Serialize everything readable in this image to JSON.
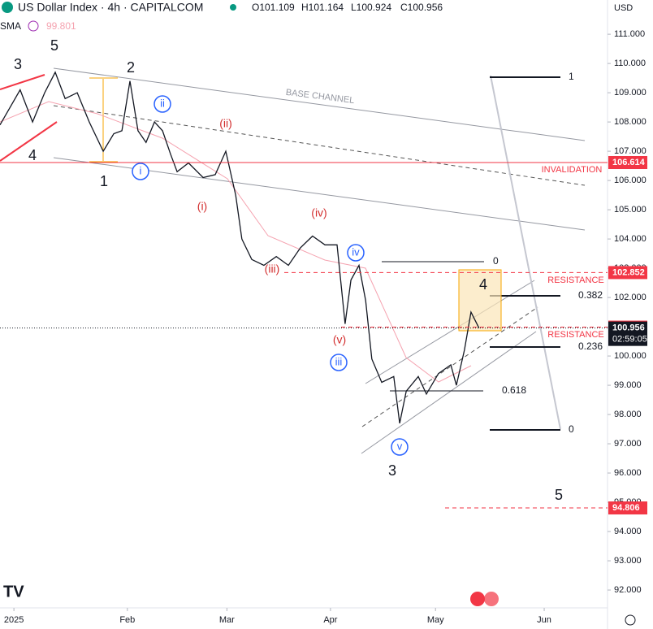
{
  "header": {
    "symbol": "US Dollar Index · 4h · CAPITALCOM",
    "ohlc": [
      "O101.109",
      "H101.164",
      "L100.924",
      "C100.956"
    ],
    "indicator": "SMA",
    "indicator_value": "99.801",
    "currency": "USD"
  },
  "chart_data": {
    "type": "line",
    "color": "#131722",
    "x": [
      0,
      5.5,
      8.9,
      12.2,
      15.1,
      17.8,
      21.1,
      24.4,
      28.2,
      31.1,
      33.3,
      35.5,
      37.7,
      39.9,
      42.2,
      44.4,
      46.6,
      48.4,
      51.5,
      55.5,
      58.8,
      61.7,
      64.4,
      66.1,
      68.8,
      72.1,
      75.5,
      78.8,
      82.1,
      85.4,
      88.8,
      92.1,
      94.3,
      95.9,
      98.1,
      99.9,
      101.6,
      104.3,
      107.6,
      109.2,
      111,
      114.3,
      116.5,
      119.8,
      123.2,
      124.7,
      126.9,
      128.7,
      130.9
    ],
    "values": [
      107.9,
      109.1,
      108.0,
      109.0,
      109.7,
      108.8,
      109.0,
      108.0,
      107.0,
      107.6,
      107.7,
      109.4,
      107.7,
      107.3,
      108.0,
      107.7,
      106.9,
      106.3,
      106.6,
      106.1,
      106.2,
      107.0,
      105.5,
      104.0,
      103.3,
      103.1,
      103.4,
      103.1,
      103.7,
      104.1,
      103.8,
      103.8,
      101.1,
      102.6,
      103.1,
      101.9,
      99.9,
      99.1,
      99.3,
      97.7,
      98.8,
      99.3,
      98.7,
      99.4,
      99.7,
      99.0,
      100.2,
      101.5,
      100.956
    ],
    "xlim": [
      0,
      166
    ],
    "ylim": [
      91.39,
      112.17
    ],
    "xticks": [
      {
        "value": 3.8,
        "label": "2025"
      },
      {
        "value": 34.8,
        "label": "Feb"
      },
      {
        "value": 62,
        "label": "Mar"
      },
      {
        "value": 90.3,
        "label": "Apr"
      },
      {
        "value": 119,
        "label": "May"
      },
      {
        "value": 148.7,
        "label": "Jun"
      }
    ],
    "yticks": [
      {
        "value": 92,
        "label": "92.000"
      },
      {
        "value": 93,
        "label": "93.000"
      },
      {
        "value": 94,
        "label": "94.000"
      },
      {
        "value": 95,
        "label": "95.000"
      },
      {
        "value": 96,
        "label": "96.000"
      },
      {
        "value": 97,
        "label": "97.000"
      },
      {
        "value": 98,
        "label": "98.000"
      },
      {
        "value": 99,
        "label": "99.000"
      },
      {
        "value": 100,
        "label": "100.000"
      },
      {
        "value": 101,
        "label": "101.000"
      },
      {
        "value": 102,
        "label": "102.000"
      },
      {
        "value": 103,
        "label": "103.000"
      },
      {
        "value": 104,
        "label": "104.000"
      },
      {
        "value": 105,
        "label": "105.000"
      },
      {
        "value": 106,
        "label": "106.000"
      },
      {
        "value": 107,
        "label": "107.000"
      },
      {
        "value": 108,
        "label": "108.000"
      },
      {
        "value": 109,
        "label": "109.000"
      },
      {
        "value": 110,
        "label": "110.000"
      },
      {
        "value": 111,
        "label": "111.000"
      }
    ],
    "levels": [
      {
        "value": 106.614,
        "label": "106.614"
      },
      {
        "value": 102.852,
        "label": "102.852"
      },
      {
        "value": 100.987,
        "label": "100.987"
      },
      {
        "value": 100.956,
        "label": "100.956",
        "countdown": "02:59:05"
      },
      {
        "value": 94.806,
        "label": "94.806"
      }
    ],
    "annotations": [
      "3",
      "5",
      "2",
      "4",
      "1",
      "ii",
      "i",
      "(ii)",
      "(i)",
      "(iv)",
      "(iii)",
      "iv",
      "(v)",
      "iii",
      "v",
      "3",
      "4",
      "5",
      "BASE CHANNEL",
      "INVALIDATION",
      "RESISTANCE",
      "RESISTANCE",
      "1",
      "0",
      "0.382",
      "0.236",
      "0.618",
      "0"
    ]
  }
}
